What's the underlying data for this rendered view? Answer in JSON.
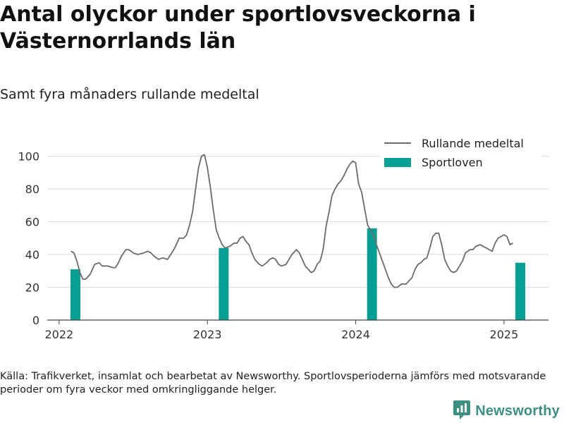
{
  "title": "Antal olyckor under sportlovsveckorna i Västernorrlands län",
  "subtitle": "Samt fyra månaders rullande medeltal",
  "source": "Källa: Trafikverket, insamlat och bearbetat av Newsworthy. Sportlovsperioderna jämförs med motsvarande perioder om fyra veckor med omkringliggande helger.",
  "brand": {
    "name": "Newsworthy",
    "icon": "newsworthy-logo-icon"
  },
  "colors": {
    "line": "#6b6b6b",
    "bars": "#079f95",
    "grid": "#dcdcdc",
    "axis": "#444444"
  },
  "chart_data": {
    "type": "bar+line",
    "xlim": [
      2021.92,
      2025.3
    ],
    "ylim": [
      0,
      108
    ],
    "yticks": [
      0,
      20,
      40,
      60,
      80,
      100
    ],
    "xticks": [
      2022,
      2023,
      2024,
      2025
    ],
    "grid": true,
    "legend_position": "top-right",
    "legend": [
      {
        "label": "Rullande medeltal",
        "kind": "line"
      },
      {
        "label": "Sportloven",
        "kind": "bar"
      }
    ],
    "bars": [
      {
        "x": 2022.11,
        "value": 31
      },
      {
        "x": 2023.11,
        "value": 44
      },
      {
        "x": 2024.11,
        "value": 56
      },
      {
        "x": 2025.11,
        "value": 35
      }
    ],
    "line": [
      [
        2022.08,
        42
      ],
      [
        2022.1,
        41
      ],
      [
        2022.12,
        36
      ],
      [
        2022.14,
        29
      ],
      [
        2022.16,
        25
      ],
      [
        2022.18,
        25
      ],
      [
        2022.21,
        28
      ],
      [
        2022.24,
        34
      ],
      [
        2022.27,
        35
      ],
      [
        2022.29,
        33
      ],
      [
        2022.33,
        33
      ],
      [
        2022.36,
        32
      ],
      [
        2022.38,
        32
      ],
      [
        2022.4,
        35
      ],
      [
        2022.42,
        39
      ],
      [
        2022.45,
        43
      ],
      [
        2022.47,
        43
      ],
      [
        2022.5,
        41
      ],
      [
        2022.53,
        40
      ],
      [
        2022.57,
        41
      ],
      [
        2022.6,
        42
      ],
      [
        2022.62,
        41
      ],
      [
        2022.64,
        39
      ],
      [
        2022.67,
        37
      ],
      [
        2022.7,
        38
      ],
      [
        2022.73,
        37
      ],
      [
        2022.76,
        41
      ],
      [
        2022.78,
        44
      ],
      [
        2022.81,
        50
      ],
      [
        2022.84,
        50
      ],
      [
        2022.86,
        52
      ],
      [
        2022.88,
        58
      ],
      [
        2022.9,
        66
      ],
      [
        2022.92,
        80
      ],
      [
        2022.94,
        93
      ],
      [
        2022.96,
        100
      ],
      [
        2022.98,
        101
      ],
      [
        2023.0,
        93
      ],
      [
        2023.02,
        81
      ],
      [
        2023.04,
        67
      ],
      [
        2023.06,
        55
      ],
      [
        2023.08,
        50
      ],
      [
        2023.1,
        46
      ],
      [
        2023.12,
        44
      ],
      [
        2023.15,
        45
      ],
      [
        2023.18,
        47
      ],
      [
        2023.2,
        47
      ],
      [
        2023.22,
        50
      ],
      [
        2023.24,
        51
      ],
      [
        2023.26,
        48
      ],
      [
        2023.28,
        46
      ],
      [
        2023.3,
        41
      ],
      [
        2023.32,
        37
      ],
      [
        2023.35,
        34
      ],
      [
        2023.37,
        33
      ],
      [
        2023.4,
        35
      ],
      [
        2023.42,
        37
      ],
      [
        2023.44,
        38
      ],
      [
        2023.46,
        37
      ],
      [
        2023.48,
        34
      ],
      [
        2023.5,
        33
      ],
      [
        2023.53,
        34
      ],
      [
        2023.55,
        37
      ],
      [
        2023.57,
        40
      ],
      [
        2023.6,
        43
      ],
      [
        2023.62,
        41
      ],
      [
        2023.64,
        37
      ],
      [
        2023.66,
        33
      ],
      [
        2023.68,
        31
      ],
      [
        2023.7,
        29
      ],
      [
        2023.72,
        30
      ],
      [
        2023.74,
        34
      ],
      [
        2023.76,
        36
      ],
      [
        2023.78,
        43
      ],
      [
        2023.8,
        57
      ],
      [
        2023.82,
        66
      ],
      [
        2023.84,
        76
      ],
      [
        2023.86,
        80
      ],
      [
        2023.88,
        83
      ],
      [
        2023.9,
        85
      ],
      [
        2023.92,
        88
      ],
      [
        2023.94,
        92
      ],
      [
        2023.96,
        95
      ],
      [
        2023.98,
        97
      ],
      [
        2024.0,
        96
      ],
      [
        2024.02,
        83
      ],
      [
        2024.04,
        78
      ],
      [
        2024.06,
        68
      ],
      [
        2024.08,
        58
      ],
      [
        2024.1,
        55
      ],
      [
        2024.12,
        52
      ],
      [
        2024.14,
        46
      ],
      [
        2024.16,
        41
      ],
      [
        2024.18,
        36
      ],
      [
        2024.2,
        31
      ],
      [
        2024.22,
        26
      ],
      [
        2024.24,
        22
      ],
      [
        2024.26,
        20
      ],
      [
        2024.28,
        20
      ],
      [
        2024.31,
        22
      ],
      [
        2024.34,
        22
      ],
      [
        2024.36,
        24
      ],
      [
        2024.38,
        26
      ],
      [
        2024.4,
        31
      ],
      [
        2024.42,
        34
      ],
      [
        2024.44,
        35
      ],
      [
        2024.46,
        37
      ],
      [
        2024.48,
        38
      ],
      [
        2024.5,
        44
      ],
      [
        2024.52,
        51
      ],
      [
        2024.54,
        53
      ],
      [
        2024.56,
        53
      ],
      [
        2024.58,
        46
      ],
      [
        2024.6,
        37
      ],
      [
        2024.62,
        33
      ],
      [
        2024.64,
        30
      ],
      [
        2024.66,
        29
      ],
      [
        2024.68,
        30
      ],
      [
        2024.7,
        33
      ],
      [
        2024.72,
        36
      ],
      [
        2024.74,
        41
      ],
      [
        2024.77,
        43
      ],
      [
        2024.79,
        43
      ],
      [
        2024.81,
        45
      ],
      [
        2024.84,
        46
      ],
      [
        2024.86,
        45
      ],
      [
        2024.88,
        44
      ],
      [
        2024.9,
        43
      ],
      [
        2024.92,
        42
      ],
      [
        2024.94,
        47
      ],
      [
        2024.96,
        50
      ],
      [
        2024.98,
        51
      ],
      [
        2025.0,
        52
      ],
      [
        2025.02,
        51
      ],
      [
        2025.04,
        46
      ],
      [
        2025.06,
        47
      ]
    ]
  }
}
